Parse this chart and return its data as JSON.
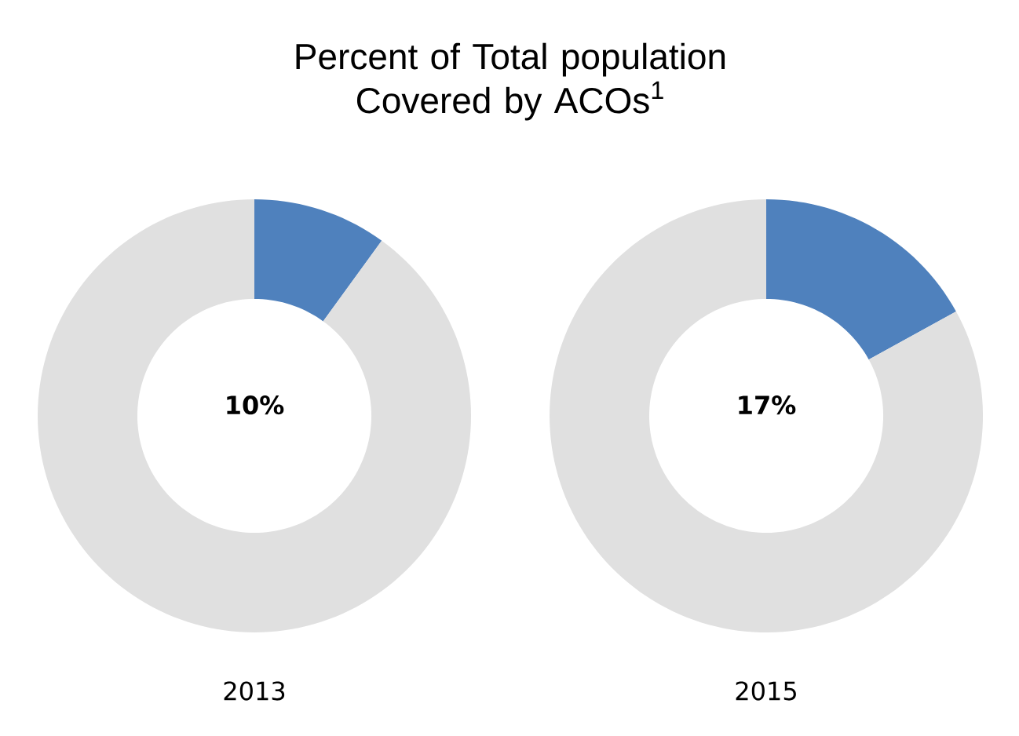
{
  "chart_data": [
    {
      "type": "donut",
      "title": "Percent of Total population Covered by ACOs$^{1}$",
      "xlabel": "2013",
      "categories": [
        null,
        null
      ],
      "values": [
        10,
        90
      ],
      "colors": [
        "#4f81bd",
        "#e0e0e0"
      ],
      "value_labels": [
        "10%",
        null
      ]
    },
    {
      "type": "donut",
      "xlabel": "2015",
      "categories": [
        null,
        null
      ],
      "values": [
        17,
        83
      ],
      "colors": [
        "#4f81bd",
        "#e0e0e0"
      ],
      "value_labels": [
        "17%",
        null
      ]
    }
  ]
}
